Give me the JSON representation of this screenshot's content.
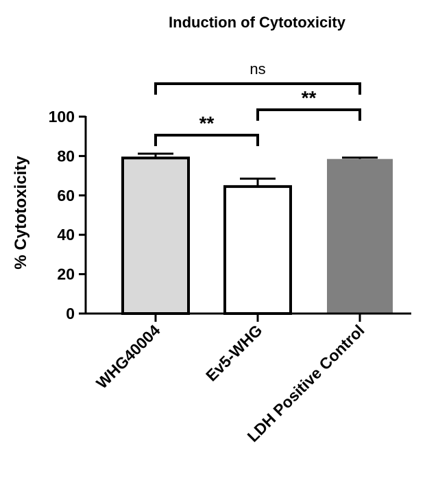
{
  "chart_data": {
    "type": "bar",
    "title": "Induction of Cytotoxicity",
    "xlabel": "",
    "ylabel": "% Cytotoxicity",
    "ylim": [
      0,
      100
    ],
    "yticks": [
      0,
      20,
      40,
      60,
      80,
      100
    ],
    "categories": [
      "WHG40004",
      "Ev5-WHG",
      "LDH Positive Control"
    ],
    "values": [
      79,
      64.5,
      78.5
    ],
    "errors": [
      2.2,
      4,
      0.7
    ],
    "bar_fills": [
      "#d9d9d9",
      "#ffffff",
      "#808080"
    ],
    "significance": [
      {
        "from": 0,
        "to": 1,
        "label": "**"
      },
      {
        "from": 1,
        "to": 2,
        "label": "**"
      },
      {
        "from": 0,
        "to": 2,
        "label": "ns"
      }
    ]
  }
}
